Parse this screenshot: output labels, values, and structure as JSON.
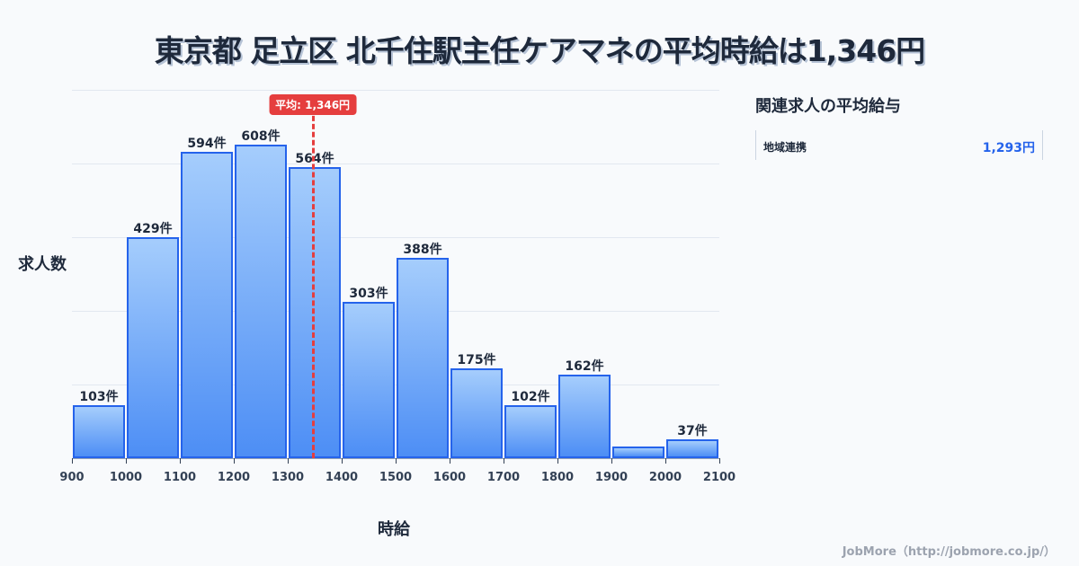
{
  "header": {
    "title": "東京都 足立区 北千住駅主任ケアマネの平均時給は1,346円"
  },
  "axes": {
    "ylabel": "求人数",
    "xlabel": "時給"
  },
  "average": {
    "label": "平均: 1,346円",
    "value": 1346,
    "color": "#e53e3e"
  },
  "sidebar": {
    "title": "関連求人の平均給与",
    "items": [
      {
        "name": "地域連携",
        "value": "1,293円"
      }
    ]
  },
  "footer": {
    "credit": "JobMore（http://jobmore.co.jp/）"
  },
  "colors": {
    "bar_fill_top": "#a5cdfc",
    "bar_fill_bottom": "#4d8ef5",
    "bar_border": "#2563eb",
    "accent": "#2563eb"
  },
  "bars": [
    {
      "label": "103件"
    },
    {
      "label": "429件"
    },
    {
      "label": "594件"
    },
    {
      "label": "608件"
    },
    {
      "label": "564件"
    },
    {
      "label": "303件"
    },
    {
      "label": "388件"
    },
    {
      "label": "175件"
    },
    {
      "label": "102件"
    },
    {
      "label": "162件"
    },
    {
      "label": ""
    },
    {
      "label": "37件"
    }
  ],
  "ticks": [
    "900",
    "1000",
    "1100",
    "1200",
    "1300",
    "1400",
    "1500",
    "1600",
    "1700",
    "1800",
    "1900",
    "2000",
    "2100"
  ],
  "chart_data": {
    "type": "bar",
    "title": "東京都 足立区 北千住駅主任ケアマネの平均時給は1,346円",
    "xlabel": "時給",
    "ylabel": "求人数",
    "categories": [
      "900-1000",
      "1000-1100",
      "1100-1200",
      "1200-1300",
      "1300-1400",
      "1400-1500",
      "1500-1600",
      "1600-1700",
      "1700-1800",
      "1800-1900",
      "1900-2000",
      "2000-2100"
    ],
    "values": [
      103,
      429,
      594,
      608,
      564,
      303,
      388,
      175,
      102,
      162,
      23,
      37
    ],
    "x_ticks": [
      900,
      1000,
      1100,
      1200,
      1300,
      1400,
      1500,
      1600,
      1700,
      1800,
      1900,
      2000,
      2100
    ],
    "ylim": [
      0,
      714
    ],
    "grid": true,
    "annotations": [
      {
        "type": "vline",
        "x": 1346,
        "label": "平均: 1,346円"
      }
    ]
  }
}
